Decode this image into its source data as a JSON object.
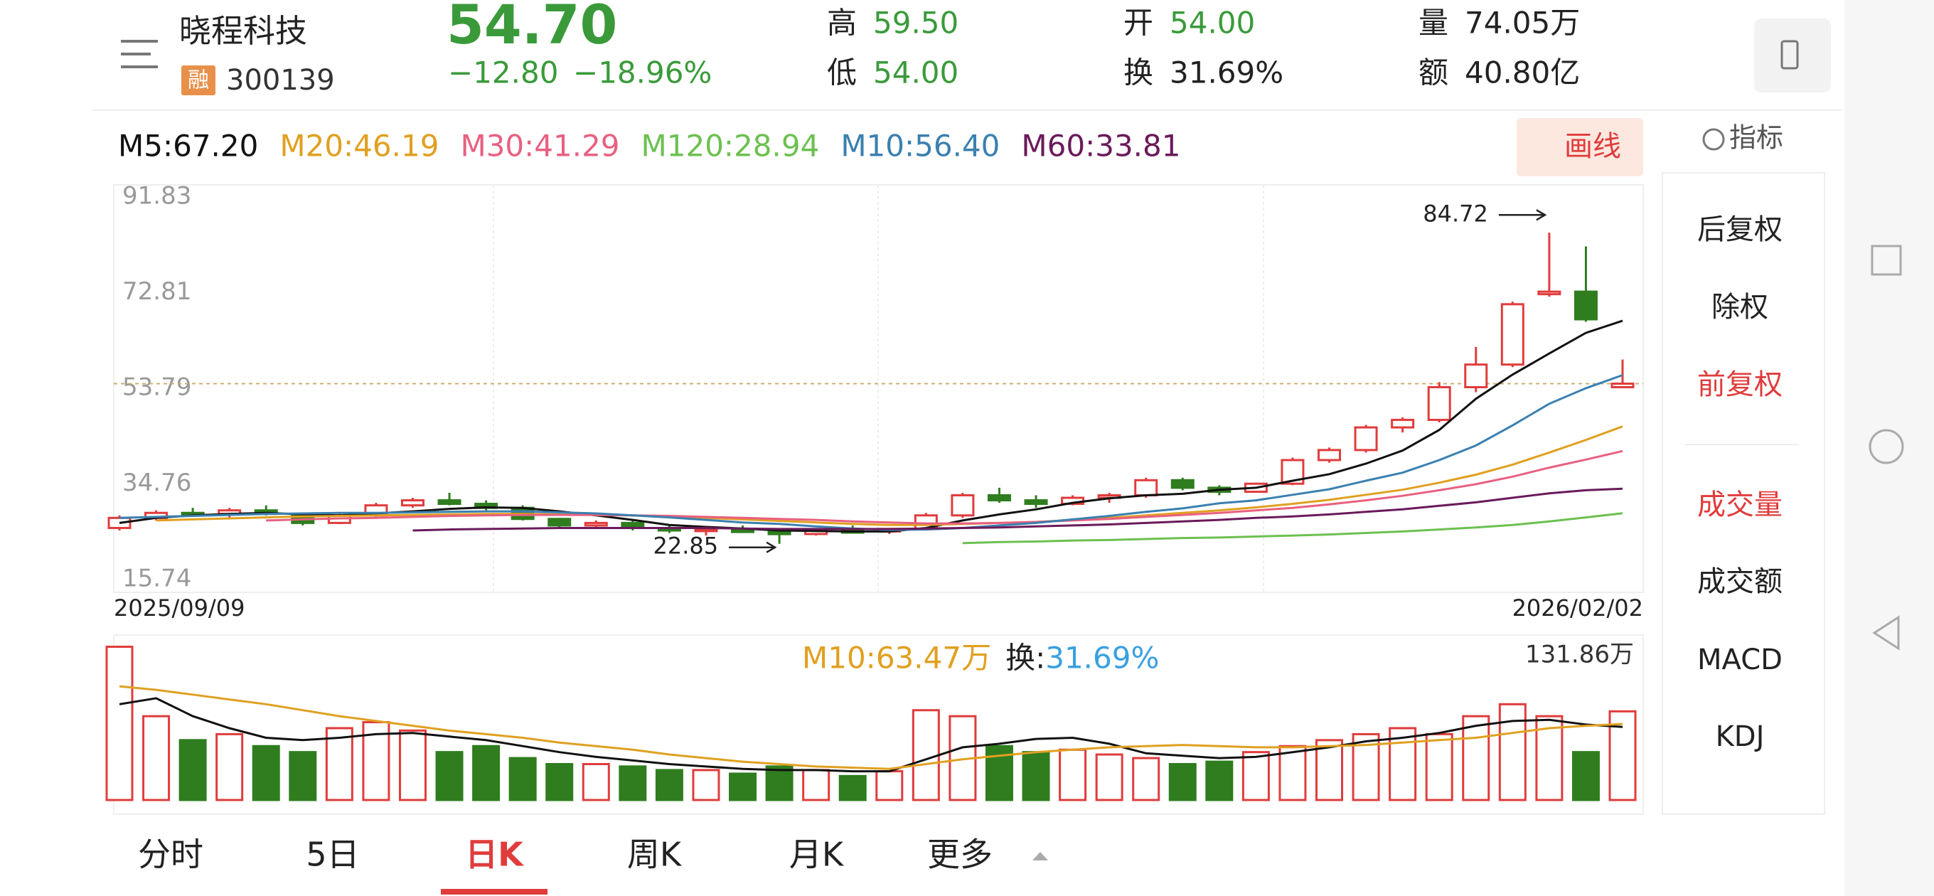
{
  "header": {
    "name": "晓程科技",
    "badge": "融",
    "code": "300139",
    "price": "54.70",
    "change": "−12.80",
    "change_pct": "−18.96%",
    "high_label": "高",
    "high": "59.50",
    "low_label": "低",
    "low": "54.00",
    "open_label": "开",
    "open": "54.00",
    "turnover_label": "换",
    "turnover": "31.69%",
    "volume_label": "量",
    "volume": "74.05万",
    "amount_label": "额",
    "amount": "40.80亿"
  },
  "draw_button": "画线",
  "indicator_label": "指标",
  "side_menu": {
    "items": [
      "后复权",
      "除权",
      "前复权",
      "成交量",
      "成交额",
      "MACD",
      "KDJ"
    ],
    "active": [
      2,
      3
    ]
  },
  "tabs": {
    "items": [
      "分时",
      "5日",
      "日K",
      "周K",
      "月K",
      "更多"
    ],
    "active": 2
  },
  "chart_data": {
    "type": "candlestick",
    "x_labels": [
      "2025/09/09",
      "2026/02/02"
    ],
    "ylim": [
      15.74,
      91.83
    ],
    "yticks": [
      91.83,
      72.81,
      53.79,
      34.76,
      15.74
    ],
    "up_color": "#e03c3c",
    "down_color": "#2f7d1f",
    "candles": {
      "open": [
        26,
        28,
        29,
        28.8,
        29.5,
        28.5,
        27,
        28.5,
        30.5,
        31.5,
        30.8,
        30,
        27.8,
        26.5,
        27,
        26,
        25.5,
        25.8,
        25.2,
        24.8,
        25.5,
        25.3,
        25.8,
        28.5,
        32.5,
        31.5,
        30.8,
        32,
        32.5,
        35.5,
        34,
        33.2,
        34.8,
        39.5,
        41.5,
        46,
        47.5,
        54,
        58.5,
        72.5,
        73,
        54
      ],
      "high": [
        28.5,
        29.5,
        30,
        30,
        30.5,
        29,
        29,
        31,
        32,
        33,
        31.5,
        30.5,
        28,
        27.5,
        27.5,
        26.5,
        26,
        26.5,
        25.5,
        26,
        26.5,
        26,
        29,
        33,
        34,
        32.5,
        32.5,
        33,
        36,
        36,
        34.5,
        35,
        40,
        42,
        46.5,
        48,
        55,
        62,
        71,
        84.72,
        82,
        59.5
      ],
      "low": [
        25.5,
        27.5,
        28.5,
        28,
        28.5,
        26.5,
        26.8,
        28.2,
        30,
        30.5,
        29.5,
        27.5,
        26,
        26,
        25.5,
        25,
        24.5,
        25,
        22.85,
        24.5,
        25,
        24.8,
        25.5,
        28,
        31,
        30,
        30.5,
        31,
        32,
        33.5,
        32.5,
        33,
        34.5,
        39,
        41,
        45,
        47,
        53,
        58,
        72,
        67,
        54
      ],
      "close": [
        28,
        29,
        28.8,
        29.5,
        28.8,
        27,
        28.5,
        30.5,
        31.5,
        30.8,
        30,
        27.8,
        26.5,
        27,
        26,
        25.5,
        25.8,
        25.2,
        24.8,
        25.5,
        25.3,
        25.8,
        28.5,
        32.5,
        31.5,
        30.8,
        32,
        32.5,
        35.5,
        34,
        33.2,
        34.8,
        39.5,
        41.5,
        46,
        47.5,
        54,
        58.5,
        70.5,
        73,
        67.5,
        54.7
      ]
    },
    "series": [
      {
        "name": "M5:67.20",
        "color": "#111111",
        "values": [
          27,
          28,
          28.5,
          28.8,
          29,
          28.7,
          28.5,
          28.9,
          29.3,
          29.8,
          30.1,
          30,
          29.3,
          28.5,
          27.6,
          26.6,
          26.2,
          25.9,
          25.5,
          25.4,
          25.3,
          25.3,
          26,
          27.5,
          28.7,
          29.7,
          31,
          31.9,
          32.5,
          32.8,
          33.6,
          34,
          35.4,
          36.7,
          38.8,
          41.4,
          45.5,
          51.7,
          56.5,
          60.7,
          64.8,
          67.2
        ]
      },
      {
        "name": "M20:46.19",
        "color": "#e0a020",
        "values": [
          null,
          27.5,
          27.7,
          27.9,
          28.1,
          28.3,
          28.4,
          28.5,
          28.6,
          28.7,
          28.8,
          28.8,
          28.7,
          28.6,
          28.5,
          28.3,
          28,
          27.7,
          27.4,
          27.1,
          26.8,
          26.6,
          26.6,
          26.8,
          27,
          27.2,
          27.6,
          28,
          28.5,
          29,
          29.5,
          30.1,
          30.8,
          31.6,
          32.6,
          33.6,
          35,
          36.6,
          38.6,
          41,
          43.5,
          46.19
        ]
      },
      {
        "name": "M30:41.29",
        "color": "#e86080",
        "values": [
          null,
          null,
          null,
          null,
          27.5,
          27.7,
          27.9,
          28,
          28.2,
          28.4,
          28.5,
          28.6,
          28.6,
          28.6,
          28.5,
          28.4,
          28.2,
          28,
          27.8,
          27.6,
          27.3,
          27.1,
          26.9,
          26.9,
          27,
          27.2,
          27.5,
          27.8,
          28.2,
          28.6,
          29,
          29.5,
          30,
          30.7,
          31.5,
          32.4,
          33.5,
          34.7,
          36.2,
          38,
          39.6,
          41.29
        ]
      },
      {
        "name": "M120:28.94",
        "color": "#6cc050",
        "values": [
          null,
          null,
          null,
          null,
          null,
          null,
          null,
          null,
          null,
          null,
          null,
          null,
          null,
          null,
          null,
          null,
          null,
          null,
          null,
          null,
          null,
          null,
          null,
          23,
          23.2,
          23.3,
          23.5,
          23.6,
          23.8,
          24,
          24.1,
          24.3,
          24.5,
          24.7,
          25,
          25.3,
          25.7,
          26.1,
          26.6,
          27.3,
          28.1,
          28.94
        ]
      },
      {
        "name": "M10:56.40",
        "color": "#3a80b0",
        "values": [
          28,
          28.2,
          28.4,
          28.6,
          28.8,
          28.9,
          29,
          29,
          29.1,
          29.2,
          29.3,
          29.3,
          29.1,
          28.9,
          28.5,
          28.1,
          27.6,
          27.1,
          26.8,
          26.3,
          25.9,
          25.6,
          25.7,
          26,
          26.5,
          27,
          27.7,
          28.4,
          29.2,
          29.9,
          30.9,
          31.5,
          32.6,
          33.7,
          35.4,
          37,
          39.5,
          42.4,
          46.4,
          50.7,
          53.8,
          56.4
        ]
      },
      {
        "name": "M60:33.81",
        "color": "#6a1a5a",
        "values": [
          null,
          null,
          null,
          null,
          null,
          null,
          null,
          null,
          25.5,
          25.7,
          25.8,
          25.9,
          26,
          26,
          26,
          26,
          26,
          25.9,
          25.8,
          25.8,
          25.8,
          25.8,
          25.9,
          26,
          26.1,
          26.3,
          26.5,
          26.7,
          27,
          27.3,
          27.6,
          28,
          28.3,
          28.7,
          29.2,
          29.7,
          30.4,
          31.1,
          32,
          32.9,
          33.5,
          33.81
        ]
      }
    ],
    "annotations": [
      {
        "text": "84.72",
        "index": 39
      },
      {
        "text": "22.85",
        "index": 18
      }
    ],
    "volume": {
      "ylim": [
        0,
        131.86
      ],
      "yticks": [
        {
          "value": 131.86,
          "label": "131.86万"
        }
      ],
      "values": [
        128,
        70,
        50,
        55,
        45,
        40,
        60,
        65,
        58,
        40,
        45,
        35,
        30,
        30,
        28,
        25,
        25,
        22,
        28,
        25,
        20,
        24,
        75,
        70,
        45,
        40,
        42,
        38,
        35,
        30,
        32,
        40,
        45,
        50,
        55,
        60,
        55,
        70,
        80,
        70,
        40,
        74.05
      ],
      "series": [
        {
          "color": "#111111",
          "values": [
            80,
            85,
            70,
            60,
            52,
            50,
            52,
            55,
            56,
            53,
            50,
            45,
            40,
            36,
            33,
            30,
            28,
            26,
            25,
            25,
            24,
            24,
            34,
            44,
            47,
            51,
            52,
            47,
            39,
            37,
            35,
            36,
            40,
            44,
            49,
            52,
            56,
            62,
            66,
            67,
            63,
            61
          ]
        },
        {
          "name": "M10:63.47万",
          "color": "#e0a020",
          "values": [
            95,
            92,
            88,
            84,
            80,
            75,
            70,
            66,
            62,
            58,
            55,
            52,
            48,
            45,
            42,
            38,
            35,
            32,
            30,
            28,
            27,
            26,
            30,
            34,
            37,
            40,
            42,
            44,
            45,
            46,
            45,
            44,
            44,
            45,
            46,
            48,
            50,
            52,
            56,
            60,
            62,
            63.47
          ]
        }
      ],
      "turnover_label": "换:",
      "turnover": "31.69%"
    }
  }
}
